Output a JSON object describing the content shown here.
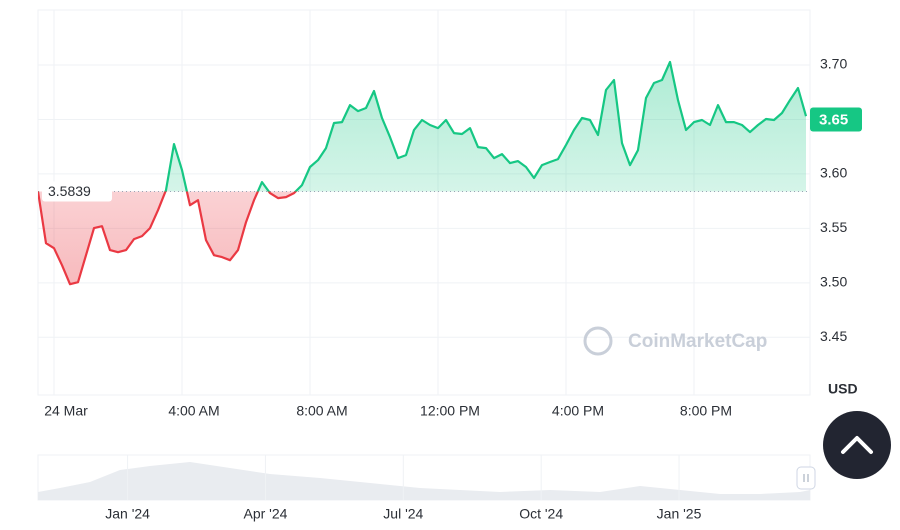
{
  "chart_data": {
    "type": "line",
    "x": [
      -0.5,
      -0.25,
      0,
      0.25,
      0.5,
      0.75,
      1,
      1.25,
      1.5,
      1.75,
      2,
      2.25,
      2.5,
      2.75,
      3,
      3.25,
      3.5,
      3.75,
      4,
      4.25,
      4.5,
      4.75,
      5,
      5.25,
      5.5,
      5.75,
      6,
      6.25,
      6.5,
      6.75,
      7,
      7.25,
      7.5,
      7.75,
      8,
      8.25,
      8.5,
      8.75,
      9,
      9.25,
      9.5,
      9.75,
      10,
      10.25,
      10.5,
      10.75,
      11,
      11.25,
      11.5,
      11.75,
      12,
      12.25,
      12.5,
      12.75,
      13,
      13.25,
      13.5,
      13.75,
      14,
      14.25,
      14.5,
      14.75,
      15,
      15.25,
      15.5,
      15.75,
      16,
      16.25,
      16.5,
      16.75,
      17,
      17.25,
      17.5,
      17.75,
      18,
      18.25,
      18.5,
      18.75,
      19,
      19.25,
      19.5,
      19.75,
      20,
      20.25,
      20.5,
      20.75,
      21,
      21.25,
      21.5,
      21.75,
      22,
      22.25,
      22.5,
      22.75,
      23,
      23.25,
      23.5
    ],
    "values": [
      3.5839,
      3.5364,
      3.5318,
      3.5162,
      3.4987,
      3.5006,
      3.5254,
      3.5502,
      3.552,
      3.53,
      3.5281,
      3.53,
      3.5401,
      3.5429,
      3.5502,
      3.5667,
      3.5851,
      3.6274,
      3.6035,
      3.5713,
      3.5759,
      3.5392,
      3.5254,
      3.5236,
      3.5208,
      3.53,
      3.5557,
      3.5759,
      3.5925,
      3.5824,
      3.5778,
      3.5787,
      3.5824,
      3.5897,
      3.6063,
      3.6127,
      3.6237,
      3.6467,
      3.6476,
      3.6632,
      3.6577,
      3.6605,
      3.6761,
      3.6513,
      3.6338,
      3.6145,
      3.6173,
      3.6403,
      3.6495,
      3.6449,
      3.6421,
      3.6495,
      3.6375,
      3.6366,
      3.6421,
      3.6246,
      3.6237,
      3.6145,
      3.6182,
      3.6099,
      3.6118,
      3.6063,
      3.5962,
      3.6081,
      3.6109,
      3.6136,
      3.6265,
      3.6403,
      3.6513,
      3.6495,
      3.6357,
      3.677,
      3.6862,
      3.6283,
      3.6081,
      3.6219,
      3.6697,
      3.6835,
      3.6862,
      3.7028,
      3.6678,
      3.6403,
      3.6476,
      3.6495,
      3.6449,
      3.6632,
      3.6476,
      3.6476,
      3.6449,
      3.6384,
      3.6449,
      3.6504,
      3.6495,
      3.6559,
      3.6678,
      3.6789,
      3.653
    ],
    "xlim": [
      -0.5,
      23.625
    ],
    "xticks": [
      {
        "value": 0,
        "label": "24 Mar"
      },
      {
        "value": 4,
        "label": "4:00 AM"
      },
      {
        "value": 8,
        "label": "8:00 AM"
      },
      {
        "value": 12,
        "label": "12:00 PM"
      },
      {
        "value": 16,
        "label": "4:00 PM"
      },
      {
        "value": 20,
        "label": "8:00 PM"
      }
    ],
    "ylim": [
      3.397,
      3.7505
    ],
    "yticks": [
      3.45,
      {
        "value": 3.5,
        "label": "3.50"
      },
      3.55,
      {
        "value": 3.6,
        "label": "3.60"
      },
      3.65,
      {
        "value": 3.7,
        "label": "3.70"
      }
    ],
    "y_axis_label": "USD",
    "baseline": 3.5839,
    "current_price": 3.65,
    "up_color": "#16c784",
    "down_color": "#ea3943",
    "grid": true,
    "watermark": "CoinMarketCap",
    "navigator_labels": [
      "Jan '24",
      "Apr '24",
      "Jul '24",
      "Oct '24",
      "Jan '25"
    ]
  }
}
